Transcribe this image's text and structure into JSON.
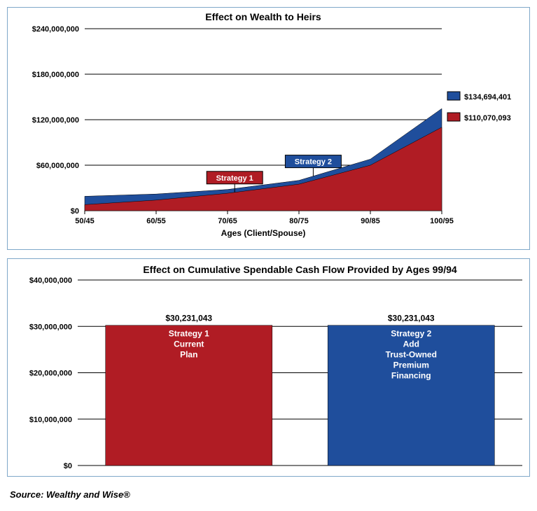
{
  "top_chart": {
    "type": "area",
    "title": "Effect on Wealth to Heirs",
    "title_fontsize": 14,
    "xlabel": "Ages (Client/Spouse)",
    "label_fontsize": 12,
    "ylim": [
      0,
      240000000
    ],
    "ytick_step": 60000000,
    "ytick_labels": [
      "$0",
      "$60,000,000",
      "$120,000,000",
      "$180,000,000",
      "$240,000,000"
    ],
    "xticks": [
      "50/45",
      "60/55",
      "70/65",
      "80/75",
      "90/85",
      "100/95"
    ],
    "series": [
      {
        "name": "Strategy 2",
        "color": "#1f4e9c",
        "values": [
          19000000,
          22000000,
          28000000,
          40000000,
          68000000,
          134694401
        ],
        "marker_label": "Strategy 2",
        "marker_bg": "#1f4e9c",
        "marker_x_index": 3.2
      },
      {
        "name": "Strategy 1",
        "color": "#b01c24",
        "values": [
          8000000,
          14000000,
          23000000,
          35000000,
          60000000,
          110070093
        ],
        "marker_label": "Strategy 1",
        "marker_bg": "#b01c24",
        "marker_x_index": 2.1
      }
    ],
    "legend": [
      {
        "color": "#1f4e9c",
        "label": "$134,694,401"
      },
      {
        "color": "#b01c24",
        "label": "$110,070,093"
      }
    ],
    "background_color": "#ffffff",
    "grid_color": "#000000",
    "axis_font_size": 11,
    "panel_border": "#7fa8c9"
  },
  "bottom_chart": {
    "type": "bar",
    "title": "Effect on Cumulative Spendable Cash Flow Provided by Ages 99/94",
    "title_fontsize": 14,
    "ylim": [
      0,
      40000000
    ],
    "ytick_step": 10000000,
    "ytick_labels": [
      "$0",
      "$10,000,000",
      "$20,000,000",
      "$30,000,000",
      "$40,000,000"
    ],
    "bars": [
      {
        "value": 30231043,
        "value_label": "$30,231,043",
        "color": "#b01c24",
        "lines": [
          "Strategy 1",
          "Current",
          "Plan"
        ]
      },
      {
        "value": 30231043,
        "value_label": "$30,231,043",
        "color": "#1f4e9c",
        "lines": [
          "Strategy 2",
          "Add",
          "Trust-Owned",
          "Premium",
          "Financing"
        ]
      }
    ],
    "bar_width": 0.75,
    "background_color": "#ffffff",
    "grid_color": "#000000",
    "axis_font_size": 11,
    "panel_border": "#7fa8c9"
  },
  "source_line": "Source: Wealthy and Wise®"
}
